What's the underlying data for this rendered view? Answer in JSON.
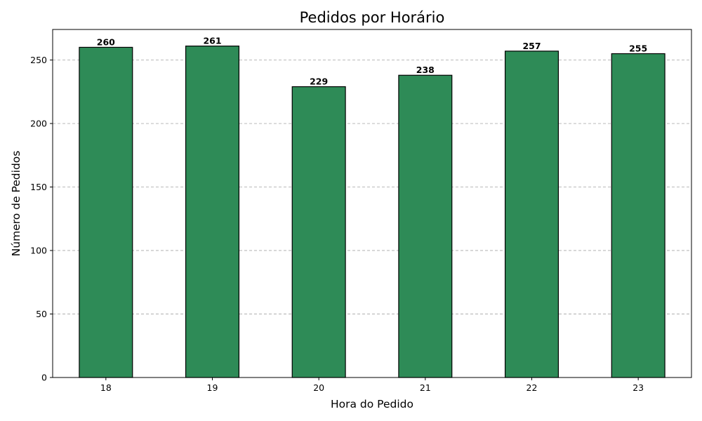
{
  "chart_data": {
    "type": "bar",
    "title": "Pedidos por Horário",
    "xlabel": "Hora do Pedido",
    "ylabel": "Número de Pedidos",
    "categories": [
      "18",
      "19",
      "20",
      "21",
      "22",
      "23"
    ],
    "values": [
      260,
      261,
      229,
      238,
      257,
      255
    ],
    "data_labels": [
      "260",
      "261",
      "229",
      "238",
      "257",
      "255"
    ],
    "ylim": [
      0,
      274.05
    ],
    "yticks": [
      0,
      50,
      100,
      150,
      200,
      250
    ],
    "ytick_labels": [
      "0",
      "50",
      "100",
      "150",
      "200",
      "250"
    ],
    "grid": "y, dashed",
    "bar_color": "#2e8b57",
    "edge_color": "#000000"
  }
}
